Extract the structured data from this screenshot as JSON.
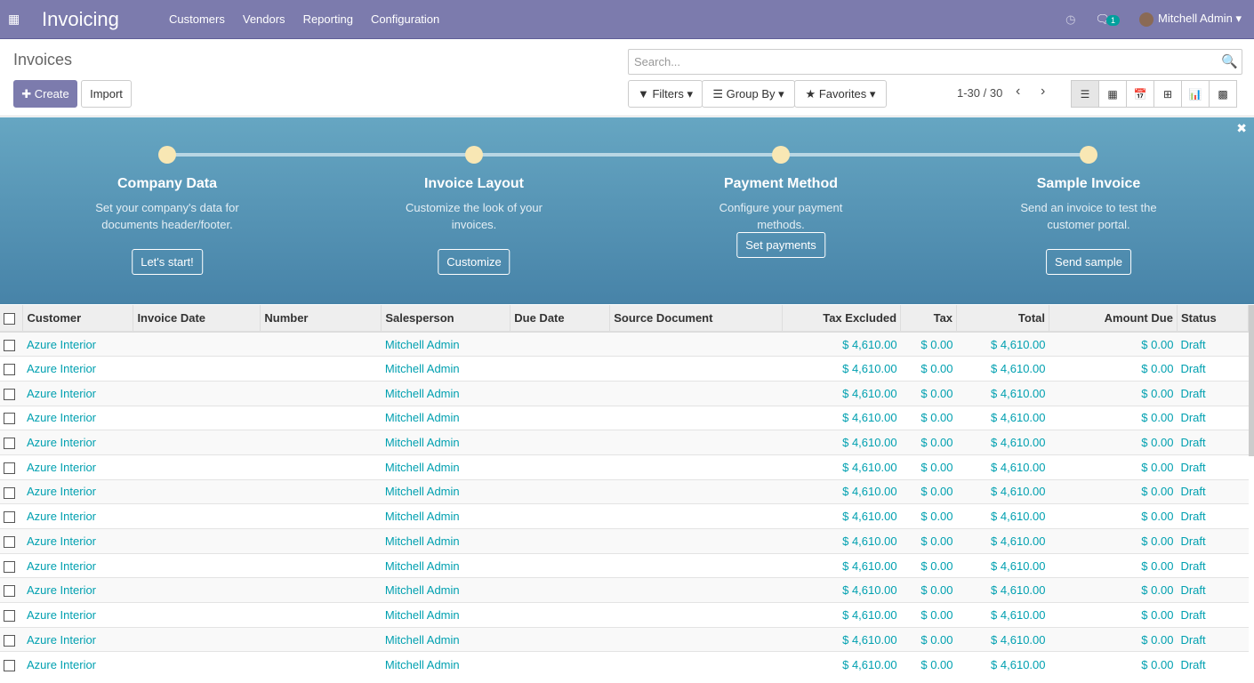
{
  "app": {
    "title": "Invoicing",
    "menu": [
      "Customers",
      "Vendors",
      "Reporting",
      "Configuration"
    ],
    "messages_count": "1",
    "user": "Mitchell Admin"
  },
  "control": {
    "title": "Invoices",
    "create": "Create",
    "import": "Import",
    "search_placeholder": "Search...",
    "filters": "Filters",
    "group_by": "Group By",
    "favorites": "Favorites",
    "pager": "1-30 / 30"
  },
  "banner": {
    "steps": [
      {
        "title": "Company Data",
        "desc": "Set your company's data for documents header/footer.",
        "button": "Let's start!"
      },
      {
        "title": "Invoice Layout",
        "desc": "Customize the look of your invoices.",
        "button": "Customize"
      },
      {
        "title": "Payment Method",
        "desc": "Configure your payment methods.",
        "button": "Set payments"
      },
      {
        "title": "Sample Invoice",
        "desc": "Send an invoice to test the customer portal.",
        "button": "Send sample"
      }
    ]
  },
  "table": {
    "columns": [
      "Customer",
      "Invoice Date",
      "Number",
      "Salesperson",
      "Due Date",
      "Source Document",
      "Tax Excluded",
      "Tax",
      "Total",
      "Amount Due",
      "Status"
    ],
    "rows": [
      [
        "Azure Interior",
        "",
        "",
        "Mitchell Admin",
        "",
        "",
        "$ 4,610.00",
        "$ 0.00",
        "$ 4,610.00",
        "$ 0.00",
        "Draft"
      ],
      [
        "Azure Interior",
        "",
        "",
        "Mitchell Admin",
        "",
        "",
        "$ 4,610.00",
        "$ 0.00",
        "$ 4,610.00",
        "$ 0.00",
        "Draft"
      ],
      [
        "Azure Interior",
        "",
        "",
        "Mitchell Admin",
        "",
        "",
        "$ 4,610.00",
        "$ 0.00",
        "$ 4,610.00",
        "$ 0.00",
        "Draft"
      ],
      [
        "Azure Interior",
        "",
        "",
        "Mitchell Admin",
        "",
        "",
        "$ 4,610.00",
        "$ 0.00",
        "$ 4,610.00",
        "$ 0.00",
        "Draft"
      ],
      [
        "Azure Interior",
        "",
        "",
        "Mitchell Admin",
        "",
        "",
        "$ 4,610.00",
        "$ 0.00",
        "$ 4,610.00",
        "$ 0.00",
        "Draft"
      ],
      [
        "Azure Interior",
        "",
        "",
        "Mitchell Admin",
        "",
        "",
        "$ 4,610.00",
        "$ 0.00",
        "$ 4,610.00",
        "$ 0.00",
        "Draft"
      ],
      [
        "Azure Interior",
        "",
        "",
        "Mitchell Admin",
        "",
        "",
        "$ 4,610.00",
        "$ 0.00",
        "$ 4,610.00",
        "$ 0.00",
        "Draft"
      ],
      [
        "Azure Interior",
        "",
        "",
        "Mitchell Admin",
        "",
        "",
        "$ 4,610.00",
        "$ 0.00",
        "$ 4,610.00",
        "$ 0.00",
        "Draft"
      ],
      [
        "Azure Interior",
        "",
        "",
        "Mitchell Admin",
        "",
        "",
        "$ 4,610.00",
        "$ 0.00",
        "$ 4,610.00",
        "$ 0.00",
        "Draft"
      ],
      [
        "Azure Interior",
        "",
        "",
        "Mitchell Admin",
        "",
        "",
        "$ 4,610.00",
        "$ 0.00",
        "$ 4,610.00",
        "$ 0.00",
        "Draft"
      ],
      [
        "Azure Interior",
        "",
        "",
        "Mitchell Admin",
        "",
        "",
        "$ 4,610.00",
        "$ 0.00",
        "$ 4,610.00",
        "$ 0.00",
        "Draft"
      ],
      [
        "Azure Interior",
        "",
        "",
        "Mitchell Admin",
        "",
        "",
        "$ 4,610.00",
        "$ 0.00",
        "$ 4,610.00",
        "$ 0.00",
        "Draft"
      ],
      [
        "Azure Interior",
        "",
        "",
        "Mitchell Admin",
        "",
        "",
        "$ 4,610.00",
        "$ 0.00",
        "$ 4,610.00",
        "$ 0.00",
        "Draft"
      ],
      [
        "Azure Interior",
        "",
        "",
        "Mitchell Admin",
        "",
        "",
        "$ 4,610.00",
        "$ 0.00",
        "$ 4,610.00",
        "$ 0.00",
        "Draft"
      ]
    ]
  },
  "colors": {
    "brand": "#7c7bad",
    "link": "#00a0b0",
    "banner": "#5795b6"
  }
}
